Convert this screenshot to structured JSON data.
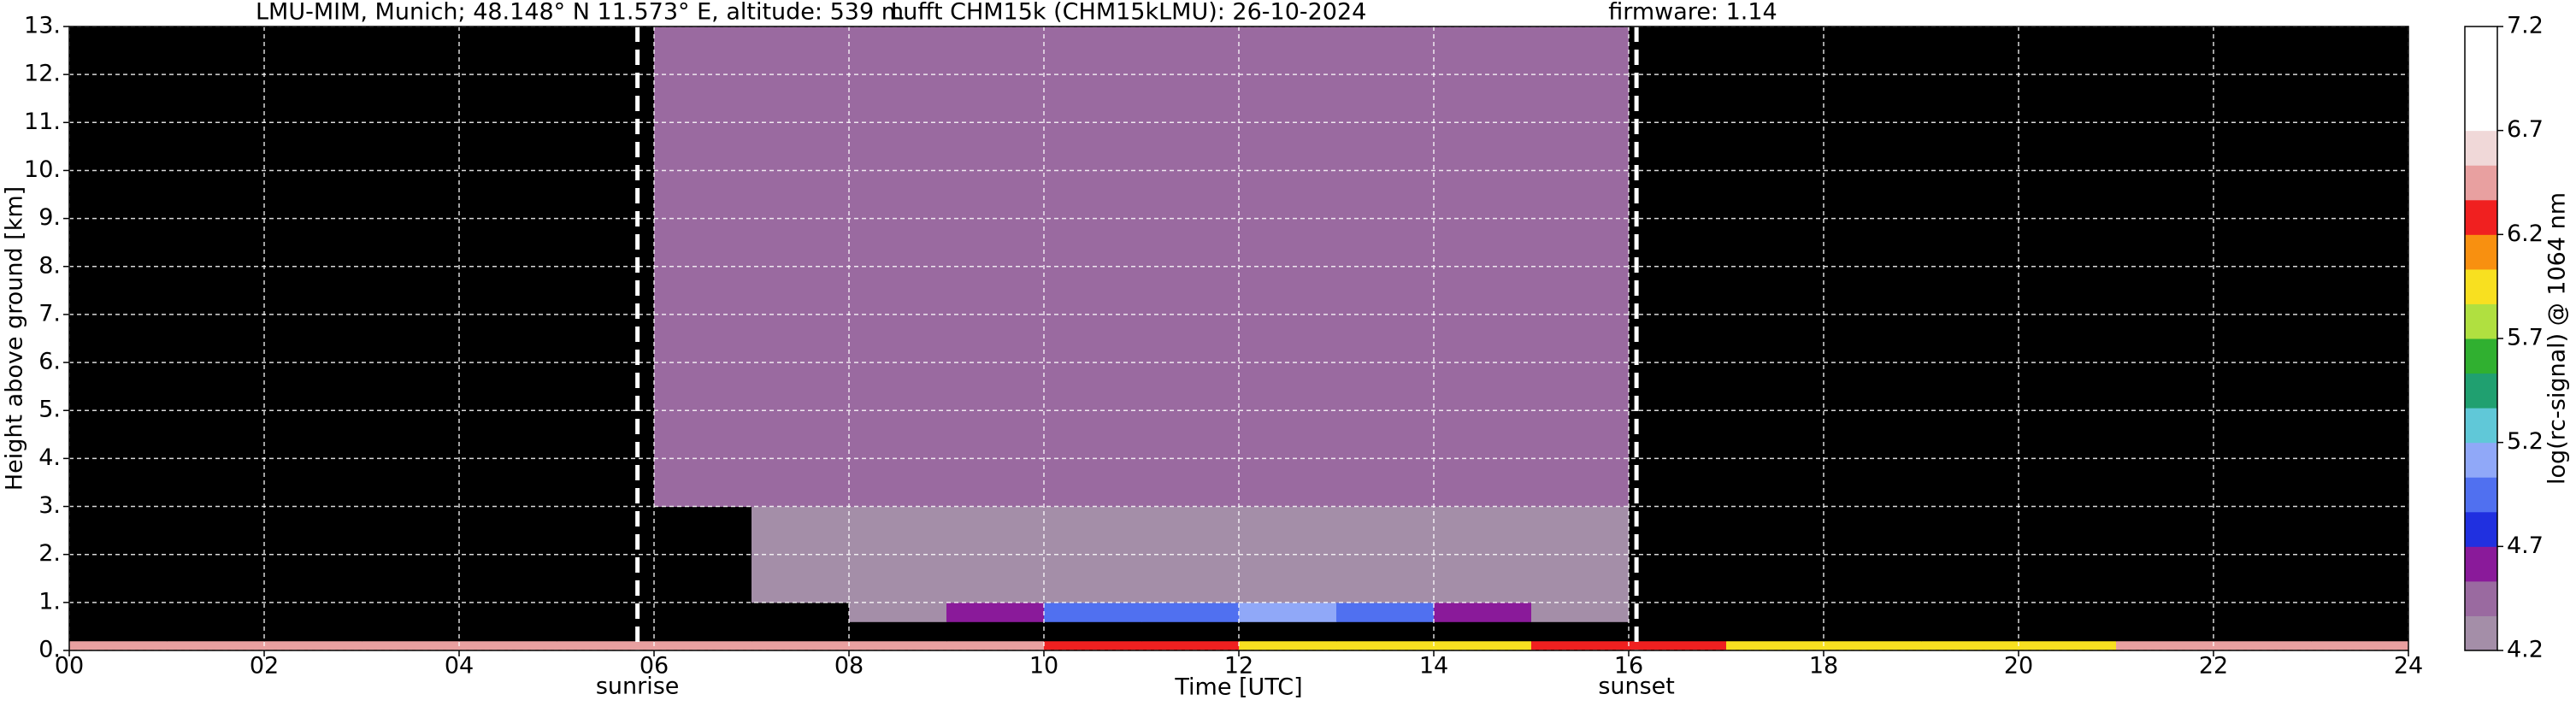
{
  "chart_data": {
    "type": "heatmap",
    "title": [
      "LMU-MIM, Munich; 48.148° N 11.573° E, altitude: 539 m",
      "Lufft CHM15k (CHM15kLMU): 26-10-2024",
      "firmware: 1.14"
    ],
    "xlabel": "Time [UTC]",
    "ylabel": "Height above ground [km]",
    "xlim": [
      0,
      24
    ],
    "ylim": [
      0,
      13
    ],
    "xticks": [
      {
        "value": 0,
        "label": "00"
      },
      {
        "value": 2,
        "label": "02"
      },
      {
        "value": 4,
        "label": "04"
      },
      {
        "value": 6,
        "label": "06"
      },
      {
        "value": 8,
        "label": "08"
      },
      10,
      12,
      14,
      16,
      18,
      20,
      22,
      24
    ],
    "yticks": [
      {
        "value": 0,
        "label": "0."
      },
      {
        "value": 1,
        "label": "1."
      },
      {
        "value": 2,
        "label": "2."
      },
      {
        "value": 3,
        "label": "3."
      },
      {
        "value": 4,
        "label": "4."
      },
      {
        "value": 5,
        "label": "5."
      },
      {
        "value": 6,
        "label": "6."
      },
      {
        "value": 7,
        "label": "7."
      },
      {
        "value": 8,
        "label": "8."
      },
      {
        "value": 9,
        "label": "9."
      },
      {
        "value": 10,
        "label": "10."
      },
      {
        "value": 11,
        "label": "11."
      },
      {
        "value": 12,
        "label": "12."
      },
      {
        "value": 13,
        "label": "13."
      }
    ],
    "grid": true,
    "grid_color": "#ffffff",
    "events": [
      {
        "label": "sunrise",
        "x": 5.83
      },
      {
        "label": "sunset",
        "x": 16.08
      }
    ],
    "x_edges": [
      0,
      1,
      2,
      3,
      4,
      5,
      6,
      7,
      8,
      9,
      10,
      11,
      12,
      13,
      14,
      15,
      16,
      17,
      18,
      19,
      20,
      21,
      22,
      23,
      24
    ],
    "y_edges": [
      0,
      0.2,
      0.6,
      1,
      2,
      3,
      4,
      5,
      6,
      7,
      8,
      9,
      10,
      11,
      12,
      13
    ],
    "z": [
      [
        6.5,
        6.5,
        6.5,
        6.5,
        6.5,
        6.5,
        6.5,
        6.5,
        6.5,
        6.5,
        6.3,
        6.3,
        6.0,
        6.0,
        6.0,
        6.2,
        6.2,
        5.9,
        5.9,
        5.9,
        5.9,
        6.4,
        6.4,
        6.4
      ],
      [
        4.0,
        4.0,
        4.0,
        4.0,
        4.0,
        4.0,
        4.0,
        4.0,
        4.0,
        4.0,
        4.0,
        4.0,
        4.0,
        4.0,
        4.0,
        4.0,
        4.0,
        4.0,
        4.0,
        4.0,
        4.0,
        4.0,
        4.0,
        4.0
      ],
      [
        4.0,
        4.0,
        4.0,
        4.0,
        4.0,
        4.0,
        4.0,
        4.0,
        4.3,
        4.6,
        4.9,
        5.0,
        5.1,
        5.0,
        4.6,
        4.3,
        4.0,
        4.0,
        4.0,
        4.0,
        4.0,
        4.0,
        4.0,
        4.0
      ],
      [
        4.0,
        4.0,
        4.0,
        4.0,
        4.0,
        4.0,
        4.0,
        4.3,
        4.3,
        4.3,
        4.3,
        4.3,
        4.3,
        4.3,
        4.3,
        4.3,
        4.0,
        4.0,
        4.0,
        4.0,
        4.0,
        4.0,
        4.0,
        4.0
      ],
      [
        4.0,
        4.0,
        4.0,
        4.0,
        4.0,
        4.0,
        4.0,
        4.3,
        4.3,
        4.3,
        4.3,
        4.3,
        4.3,
        4.3,
        4.3,
        4.3,
        4.0,
        4.0,
        4.0,
        4.0,
        4.0,
        4.0,
        4.0,
        4.0
      ],
      [
        4.0,
        4.0,
        4.0,
        4.0,
        4.0,
        4.0,
        4.4,
        4.4,
        4.4,
        4.4,
        4.4,
        4.4,
        4.4,
        4.4,
        4.4,
        4.4,
        4.0,
        4.0,
        4.0,
        4.0,
        4.0,
        4.0,
        4.0,
        4.0
      ],
      [
        4.0,
        4.0,
        4.0,
        4.0,
        4.0,
        4.0,
        4.4,
        4.4,
        4.4,
        4.4,
        4.4,
        4.4,
        4.4,
        4.4,
        4.4,
        4.4,
        4.0,
        4.0,
        4.0,
        4.0,
        4.0,
        4.0,
        4.0,
        4.0
      ],
      [
        4.0,
        4.0,
        4.0,
        4.0,
        4.0,
        4.0,
        4.4,
        4.4,
        4.4,
        4.4,
        4.4,
        4.4,
        4.4,
        4.4,
        4.4,
        4.4,
        4.0,
        4.0,
        4.0,
        4.0,
        4.0,
        4.0,
        4.0,
        4.0
      ],
      [
        4.0,
        4.0,
        4.0,
        4.0,
        4.0,
        4.0,
        4.4,
        4.4,
        4.4,
        4.4,
        4.4,
        4.4,
        4.4,
        4.4,
        4.4,
        4.4,
        4.0,
        4.0,
        4.0,
        4.0,
        4.0,
        4.0,
        4.0,
        4.0
      ],
      [
        4.0,
        4.0,
        4.0,
        4.0,
        4.0,
        4.0,
        4.4,
        4.4,
        4.4,
        4.4,
        4.4,
        4.4,
        4.4,
        4.4,
        4.4,
        4.4,
        4.0,
        4.0,
        4.0,
        4.0,
        4.0,
        4.0,
        4.0,
        4.0
      ],
      [
        4.0,
        4.0,
        4.0,
        4.0,
        4.0,
        4.0,
        4.4,
        4.4,
        4.4,
        4.4,
        4.4,
        4.4,
        4.4,
        4.4,
        4.4,
        4.4,
        4.0,
        4.0,
        4.0,
        4.0,
        4.0,
        4.0,
        4.0,
        4.0
      ],
      [
        4.0,
        4.0,
        4.0,
        4.0,
        4.0,
        4.0,
        4.4,
        4.4,
        4.4,
        4.4,
        4.4,
        4.4,
        4.4,
        4.4,
        4.4,
        4.4,
        4.0,
        4.0,
        4.0,
        4.0,
        4.0,
        4.0,
        4.0,
        4.0
      ],
      [
        4.0,
        4.0,
        4.0,
        4.0,
        4.0,
        4.0,
        4.4,
        4.4,
        4.4,
        4.4,
        4.4,
        4.4,
        4.4,
        4.4,
        4.4,
        4.4,
        4.0,
        4.0,
        4.0,
        4.0,
        4.0,
        4.0,
        4.0,
        4.0
      ],
      [
        4.0,
        4.0,
        4.0,
        4.0,
        4.0,
        4.0,
        4.4,
        4.4,
        4.4,
        4.4,
        4.4,
        4.4,
        4.4,
        4.4,
        4.4,
        4.4,
        4.0,
        4.0,
        4.0,
        4.0,
        4.0,
        4.0,
        4.0,
        4.0
      ],
      [
        4.0,
        4.0,
        4.0,
        4.0,
        4.0,
        4.0,
        4.4,
        4.4,
        4.4,
        4.4,
        4.4,
        4.4,
        4.4,
        4.4,
        4.4,
        4.4,
        4.0,
        4.0,
        4.0,
        4.0,
        4.0,
        4.0,
        4.0,
        4.0
      ]
    ],
    "clim": [
      4.2,
      7.2
    ],
    "cticks": [
      4.2,
      4.7,
      5.2,
      5.7,
      6.2,
      6.7,
      7.2
    ],
    "colorbar_label": "log(rc-signal) @ 1064 nm",
    "under_color": "#000000",
    "colors": [
      "#a48ea8",
      "#9a6aa0",
      "#8a1a9a",
      "#2030e0",
      "#5070f0",
      "#90a8f8",
      "#60c8d8",
      "#20a070",
      "#30b030",
      "#b0e040",
      "#f8e020",
      "#f89010",
      "#f02020",
      "#e8a0a0",
      "#f0d8d8",
      "#ffffff",
      "#ffffff",
      "#ffffff"
    ]
  }
}
